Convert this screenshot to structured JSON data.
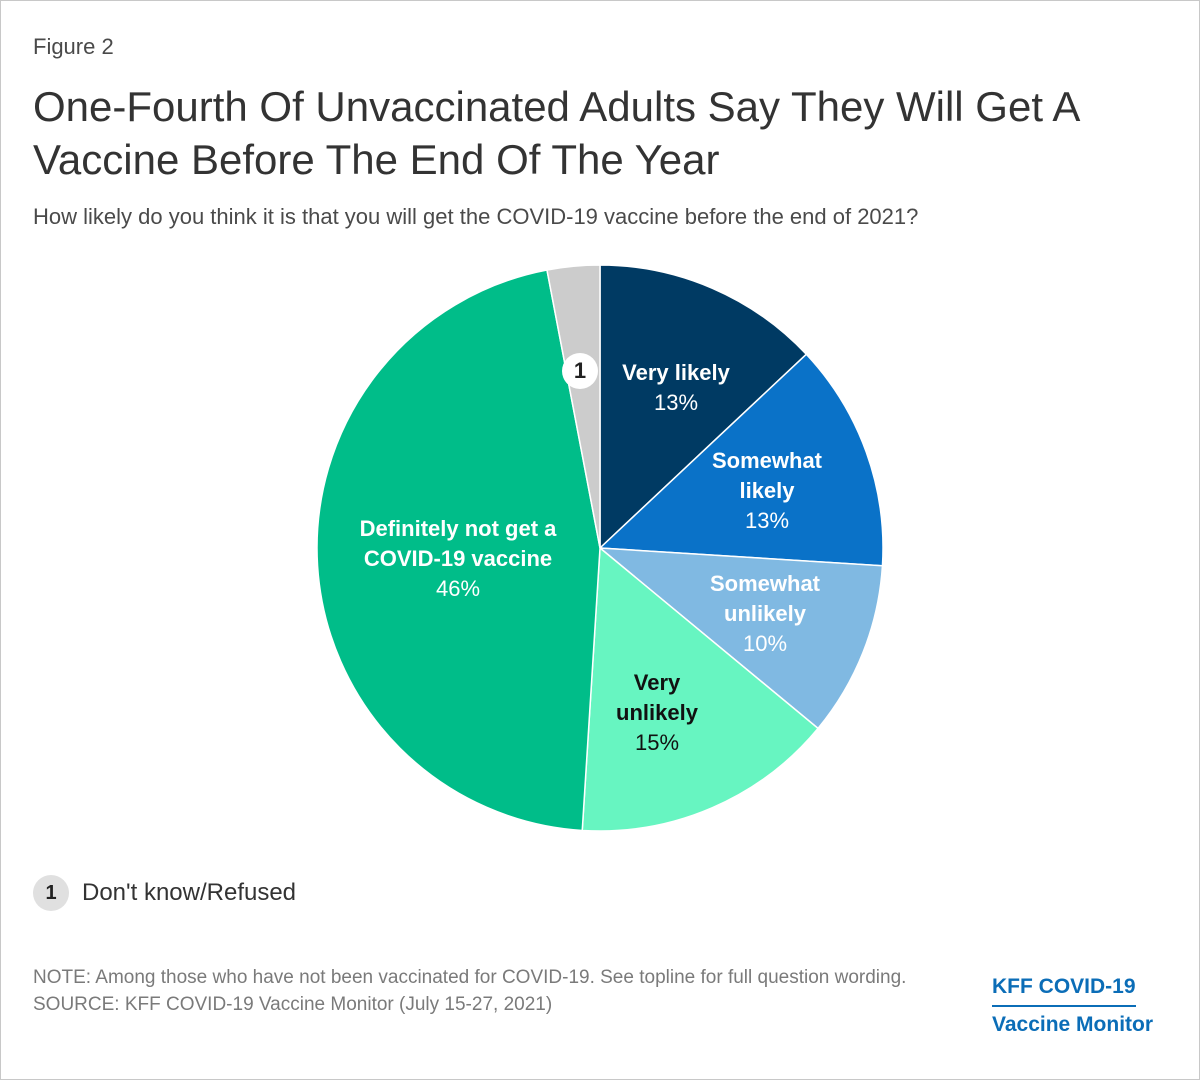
{
  "figure_label": "Figure 2",
  "title": "One-Fourth Of Unvaccinated Adults Say They Will Get A Vaccine Before The End Of The Year",
  "subtitle": "How likely do you think it is that you will get the COVID-19 vaccine before the end of 2021?",
  "legend": {
    "badge": "1",
    "label": "Don't know/Refused"
  },
  "note": "NOTE: Among those who have not been vaccinated for COVID-19. See topline for full question wording.",
  "source": "SOURCE: KFF COVID-19 Vaccine Monitor (July 15-27, 2021)",
  "brand": {
    "line1": "KFF COVID-19",
    "line2": "Vaccine Monitor"
  },
  "chart_data": {
    "type": "pie",
    "slices": [
      {
        "name": "Very likely",
        "label_lines": [
          "Very likely"
        ],
        "value": 13,
        "value_label": "13%",
        "color": "#003a63",
        "text_color": "#ffffff"
      },
      {
        "name": "Somewhat likely",
        "label_lines": [
          "Somewhat",
          "likely"
        ],
        "value": 13,
        "value_label": "13%",
        "color": "#0a72c8",
        "text_color": "#ffffff"
      },
      {
        "name": "Somewhat unlikely",
        "label_lines": [
          "Somewhat",
          "unlikely"
        ],
        "value": 10,
        "value_label": "10%",
        "color": "#80b9e2",
        "text_color": "#ffffff"
      },
      {
        "name": "Very unlikely",
        "label_lines": [
          "Very",
          "unlikely"
        ],
        "value": 15,
        "value_label": "15%",
        "color": "#67f5c1",
        "text_color": "#111111"
      },
      {
        "name": "Definitely not get a COVID-19 vaccine",
        "label_lines": [
          "Definitely not get a",
          "COVID-19 vaccine"
        ],
        "value": 46,
        "value_label": "46%",
        "color": "#00bd89",
        "text_color": "#ffffff"
      },
      {
        "name": "Don't know/Refused",
        "label_lines": [],
        "value": 3,
        "value_label": "",
        "badge": "1",
        "color": "#cccccc",
        "text_color": "#222222"
      }
    ]
  }
}
